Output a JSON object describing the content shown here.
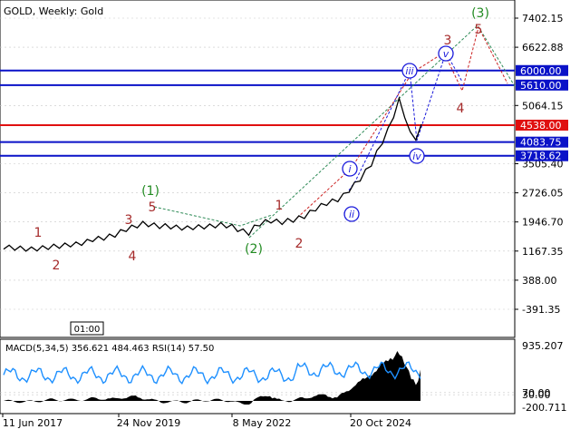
{
  "chart_title": "GOLD, Weekly:  Gold",
  "timestamp_label": "01:00",
  "chart_data": {
    "type": "line",
    "title": "GOLD, Weekly:  Gold",
    "price_ticks": [
      "7402.15",
      "6622.88",
      "5064.15",
      "3505.40",
      "2726.05",
      "1946.70",
      "1167.35",
      "388.00",
      "-391.35"
    ],
    "x_tick_labels": [
      "11 Jun 2017",
      "24 Nov 2019",
      "8 May 2022",
      "20 Oct 2024"
    ],
    "price_series": {
      "name": "GOLD",
      "color": "#000000",
      "values": [
        1280,
        1265,
        1250,
        1240,
        1225,
        1215,
        1230,
        1250,
        1270,
        1290,
        1300,
        1320,
        1340,
        1350,
        1380,
        1420,
        1480,
        1500,
        1520,
        1560,
        1600,
        1680,
        1750,
        1800,
        1850,
        1900,
        1880,
        1860,
        1830,
        1840,
        1820,
        1800,
        1790,
        1780,
        1800,
        1810,
        1820,
        1830,
        1850,
        1870,
        1850,
        1820,
        1750,
        1700,
        1650,
        1800,
        1900,
        1950,
        1980,
        1960,
        1940,
        1980,
        2000,
        2050,
        2100,
        2200,
        2300,
        2380,
        2450,
        2500,
        2550,
        2650,
        2800,
        2950,
        3100,
        3300,
        3500,
        3800,
        4100,
        4400,
        4800,
        5200,
        4800,
        4300,
        4200,
        4500
      ]
    },
    "horizontal_levels": [
      {
        "label": "6000.00",
        "value": 6000,
        "color": "#0a12c8",
        "badge": "#0a12c8"
      },
      {
        "label": "5610.00",
        "value": 5610,
        "color": "#0a12c8",
        "badge": "#0a12c8"
      },
      {
        "label": "4538.00",
        "value": 4538,
        "color": "#e01010",
        "badge": "#e01010"
      },
      {
        "label": "4083.75",
        "value": 4083.75,
        "color": "#0a12c8",
        "badge": "#0a12c8"
      },
      {
        "label": "3718.62",
        "value": 3718.62,
        "color": "#0a12c8",
        "badge": "#0a12c8"
      }
    ],
    "wave_labels": {
      "red_numerals": [
        "1",
        "2",
        "3",
        "4",
        "5",
        "1",
        "2",
        "3",
        "4",
        "5"
      ],
      "green_numerals": [
        "(1)",
        "(2)",
        "(3)"
      ],
      "blue_circled": [
        "i",
        "ii",
        "iii",
        "iv",
        "v"
      ]
    },
    "indicator": {
      "title": "MACD(5,34,5) 356.621 484.463 RSI(14) 57.50",
      "ticks": [
        "935.207",
        "70.00",
        "30.00",
        "-200.711"
      ],
      "macd_color": "#000000",
      "rsi_color": "#1e90ff"
    }
  },
  "colors": {
    "grid": "#c8c8c8",
    "axis_text": "#000000",
    "red_label": "#a52a2a",
    "green_label": "#228b22",
    "blue_label": "#1a1adb",
    "dotted_green": "#2e8b57",
    "dotted_red": "#cc2222",
    "dotted_blue": "#1a1adb"
  }
}
